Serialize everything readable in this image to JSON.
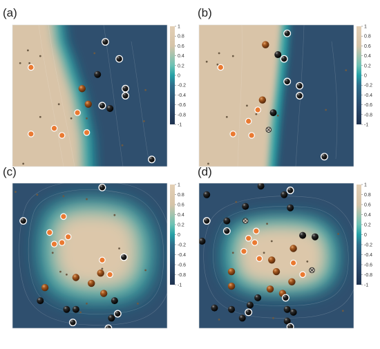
{
  "figure": {
    "colormap": {
      "stops": [
        "#1f3350",
        "#2c4d6f",
        "#2f6f8c",
        "#24a0a6",
        "#6cc2b4",
        "#d6c4a8",
        "#e3cfb5"
      ],
      "ticks": [
        "1",
        "0.8",
        "0.6",
        "0.4",
        "0.2",
        "0",
        "-0.2",
        "-0.4",
        "-0.6",
        "-0.8",
        "-1"
      ],
      "vmin": -1,
      "vmax": 1
    },
    "markers": {
      "orange": "#ea7a32",
      "brown_ball": "#8b4516",
      "black_ball": "#111111",
      "dot": "#6b5a44",
      "ring": "#ffffff"
    },
    "panels": [
      {
        "label": "(a)",
        "field": "linear",
        "boundary": [
          [
            0.24,
            0.0
          ],
          [
            0.3,
            0.25
          ],
          [
            0.34,
            0.45
          ],
          [
            0.38,
            0.65
          ],
          [
            0.42,
            0.85
          ],
          [
            0.45,
            1.0
          ]
        ],
        "orange": [
          [
            0.12,
            0.3
          ],
          [
            0.42,
            0.62
          ],
          [
            0.32,
            0.78
          ],
          [
            0.27,
            0.73
          ],
          [
            0.12,
            0.77
          ],
          [
            0.48,
            0.76
          ]
        ],
        "brown": [
          [
            0.45,
            0.45
          ],
          [
            0.49,
            0.56
          ]
        ],
        "black_plain": [
          [
            0.55,
            0.35
          ],
          [
            0.63,
            0.59
          ]
        ],
        "black_ringed": [
          [
            0.6,
            0.12
          ],
          [
            0.69,
            0.24
          ],
          [
            0.58,
            0.57
          ],
          [
            0.73,
            0.45
          ],
          [
            0.73,
            0.5
          ],
          [
            0.9,
            0.95
          ]
        ],
        "dot": [
          [
            0.1,
            0.18
          ],
          [
            0.05,
            0.27
          ],
          [
            0.11,
            0.27
          ],
          [
            0.18,
            0.22
          ],
          [
            0.3,
            0.56
          ],
          [
            0.38,
            0.66
          ],
          [
            0.18,
            0.65
          ],
          [
            0.48,
            0.66
          ],
          [
            0.07,
            0.98
          ],
          [
            0.53,
            0.2
          ],
          [
            0.86,
            0.46
          ],
          [
            0.71,
            0.85
          ],
          [
            0.85,
            0.68
          ]
        ]
      },
      {
        "label": "(b)",
        "field": "linear",
        "boundary": [
          [
            0.55,
            0.0
          ],
          [
            0.52,
            0.25
          ],
          [
            0.5,
            0.5
          ],
          [
            0.47,
            0.75
          ],
          [
            0.45,
            1.0
          ]
        ],
        "orange": [
          [
            0.14,
            0.3
          ],
          [
            0.38,
            0.6
          ],
          [
            0.32,
            0.68
          ],
          [
            0.22,
            0.77
          ],
          [
            0.34,
            0.78
          ]
        ],
        "brown": [
          [
            0.43,
            0.14
          ],
          [
            0.41,
            0.53
          ]
        ],
        "black_plain": [
          [
            0.51,
            0.21
          ],
          [
            0.48,
            0.62
          ]
        ],
        "black_ringed": [
          [
            0.57,
            0.06
          ],
          [
            0.55,
            0.24
          ],
          [
            0.57,
            0.4
          ],
          [
            0.65,
            0.43
          ],
          [
            0.65,
            0.5
          ],
          [
            0.81,
            0.93
          ]
        ],
        "cross": [
          [
            0.45,
            0.74
          ]
        ],
        "dot": [
          [
            0.13,
            0.2
          ],
          [
            0.05,
            0.26
          ],
          [
            0.12,
            0.28
          ],
          [
            0.22,
            0.22
          ],
          [
            0.31,
            0.57
          ],
          [
            0.37,
            0.63
          ],
          [
            0.18,
            0.65
          ],
          [
            0.51,
            0.64
          ],
          [
            0.06,
            0.98
          ],
          [
            0.95,
            0.32
          ],
          [
            0.82,
            0.6
          ]
        ]
      },
      {
        "label": "(c)",
        "field": "blob",
        "center": [
          0.52,
          0.48
        ],
        "radius": [
          0.31,
          0.3
        ],
        "orange": [
          [
            0.33,
            0.23
          ],
          [
            0.24,
            0.34
          ],
          [
            0.27,
            0.42
          ],
          [
            0.36,
            0.37
          ],
          [
            0.32,
            0.41
          ],
          [
            0.58,
            0.53
          ],
          [
            0.63,
            0.63
          ]
        ],
        "brown": [
          [
            0.21,
            0.72
          ],
          [
            0.41,
            0.65
          ],
          [
            0.51,
            0.69
          ],
          [
            0.57,
            0.62
          ],
          [
            0.59,
            0.76
          ]
        ],
        "black_plain": [
          [
            0.18,
            0.81
          ],
          [
            0.35,
            0.87
          ],
          [
            0.41,
            0.87
          ],
          [
            0.64,
            0.93
          ],
          [
            0.66,
            0.81
          ]
        ],
        "black_ringed": [
          [
            0.58,
            0.03
          ],
          [
            0.07,
            0.26
          ],
          [
            0.72,
            0.51
          ],
          [
            0.39,
            0.96
          ],
          [
            0.68,
            0.9
          ],
          [
            0.62,
            1.0
          ]
        ],
        "dot": [
          [
            0.02,
            0.06
          ],
          [
            0.16,
            0.08
          ],
          [
            0.33,
            0.09
          ],
          [
            0.48,
            0.11
          ],
          [
            0.66,
            0.22
          ],
          [
            0.31,
            0.61
          ],
          [
            0.35,
            0.63
          ],
          [
            0.26,
            0.48
          ],
          [
            0.69,
            0.45
          ],
          [
            0.58,
            0.59
          ],
          [
            0.48,
            0.83
          ],
          [
            0.44,
            0.89
          ],
          [
            0.81,
            0.83
          ],
          [
            0.86,
            0.6
          ]
        ]
      },
      {
        "label": "(d)",
        "field": "blob",
        "center": [
          0.48,
          0.5
        ],
        "radius": [
          0.37,
          0.21
        ],
        "orange": [
          [
            0.32,
            0.38
          ],
          [
            0.37,
            0.33
          ],
          [
            0.36,
            0.41
          ],
          [
            0.29,
            0.47
          ],
          [
            0.39,
            0.52
          ],
          [
            0.61,
            0.55
          ],
          [
            0.67,
            0.63
          ]
        ],
        "brown": [
          [
            0.61,
            0.45
          ],
          [
            0.47,
            0.53
          ],
          [
            0.21,
            0.61
          ],
          [
            0.5,
            0.61
          ],
          [
            0.6,
            0.68
          ],
          [
            0.21,
            0.71
          ],
          [
            0.46,
            0.73
          ],
          [
            0.54,
            0.76
          ]
        ],
        "black_plain": [
          [
            0.4,
            0.02
          ],
          [
            0.05,
            0.08
          ],
          [
            0.55,
            0.08
          ],
          [
            0.3,
            0.16
          ],
          [
            0.59,
            0.17
          ],
          [
            0.18,
            0.26
          ],
          [
            0.67,
            0.36
          ],
          [
            0.75,
            0.37
          ],
          [
            0.02,
            0.4
          ],
          [
            0.1,
            0.86
          ],
          [
            0.21,
            0.87
          ],
          [
            0.38,
            0.79
          ],
          [
            0.33,
            0.84
          ],
          [
            0.57,
            0.87
          ],
          [
            0.61,
            0.89
          ],
          [
            0.57,
            0.95
          ],
          [
            0.28,
            0.93
          ]
        ],
        "black_ringed": [
          [
            0.59,
            0.05
          ],
          [
            0.05,
            0.26
          ],
          [
            0.18,
            0.33
          ],
          [
            0.32,
            0.89
          ],
          [
            0.56,
            0.79
          ],
          [
            0.59,
            0.99
          ]
        ],
        "cross": [
          [
            0.3,
            0.26
          ],
          [
            0.73,
            0.6
          ]
        ],
        "dot": [
          [
            0.24,
            0.13
          ],
          [
            0.44,
            0.28
          ],
          [
            0.42,
            0.48
          ],
          [
            0.47,
            0.4
          ],
          [
            0.22,
            0.48
          ],
          [
            0.7,
            0.54
          ],
          [
            0.13,
            0.94
          ],
          [
            0.48,
            0.93
          ],
          [
            0.9,
            0.35
          ],
          [
            0.93,
            0.88
          ]
        ]
      }
    ]
  }
}
